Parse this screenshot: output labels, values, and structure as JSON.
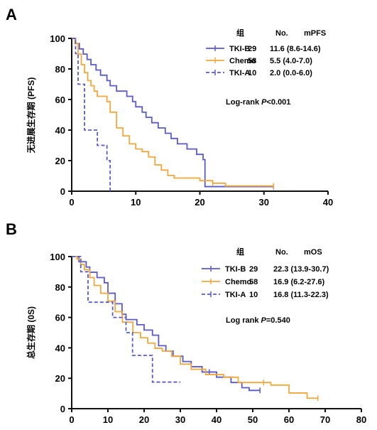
{
  "chart_data": [
    {
      "type": "line",
      "panel": "A",
      "xlabel": "",
      "ylabel": "无进展生存期 (PFS)",
      "xlim": [
        0,
        40
      ],
      "ylim": [
        0,
        100
      ],
      "xticks": [
        0,
        10,
        20,
        30,
        40
      ],
      "yticks": [
        0,
        20,
        40,
        60,
        80,
        100
      ],
      "grid": false,
      "legend": {
        "placement": "top-right",
        "headers": [
          "组",
          "No.",
          "mPFS"
        ],
        "entries": [
          {
            "name": "TKI-B",
            "n": "29",
            "median": "11.6 (8.6-14.6)"
          },
          {
            "name": "Chemo",
            "n": "58",
            "median": "5.5 (4.0-7.0)"
          },
          {
            "name": "TKI-A",
            "n": "10",
            "median": "2.0 (0.0-6.0)"
          }
        ]
      },
      "annotation": {
        "prefix": "Log-rank ",
        "italic": "P",
        "suffix": "<0.001"
      },
      "series": [
        {
          "name": "TKI-B",
          "color": "#5a5ac8",
          "dash": false,
          "x": [
            0,
            0.6,
            1.2,
            1.8,
            2.4,
            3.0,
            3.8,
            4.5,
            5.5,
            6.0,
            7.0,
            8.6,
            9.5,
            10.0,
            11.0,
            11.6,
            12.5,
            13.5,
            14.6,
            15.5,
            16.5,
            18.0,
            19.5,
            20.5,
            20.8,
            31.5
          ],
          "y": [
            100,
            96.6,
            93.1,
            89.7,
            86.2,
            82.8,
            79.3,
            75.9,
            72.4,
            69.0,
            65.5,
            62.1,
            58.6,
            55.2,
            51.7,
            48.3,
            44.8,
            41.4,
            37.9,
            34.5,
            31.0,
            27.6,
            24.1,
            20.7,
            3.0,
            3.0
          ],
          "censor_x": [
            31.5
          ]
        },
        {
          "name": "Chemo",
          "color": "#f0a83c",
          "dash": false,
          "x": [
            0,
            0.5,
            1.0,
            1.5,
            2.0,
            2.5,
            3.0,
            3.5,
            4.0,
            5.5,
            6.0,
            7.0,
            8.0,
            9.0,
            10.0,
            11.0,
            12.0,
            13.0,
            14.0,
            15.0,
            16.0,
            18.0,
            20.0,
            22.0,
            24.0,
            28.0,
            31.5
          ],
          "y": [
            100,
            96.6,
            89.7,
            82.8,
            77.6,
            72.4,
            69.0,
            65.5,
            62.1,
            58.6,
            51.7,
            41.4,
            36.2,
            31.0,
            27.6,
            25.9,
            22.4,
            17.2,
            13.8,
            10.3,
            8.6,
            8.6,
            6.9,
            5.2,
            3.4,
            3.4,
            3.4
          ],
          "censor_x": [
            22.0,
            31.5
          ]
        },
        {
          "name": "TKI-A",
          "color": "#5a5ac8",
          "dash": true,
          "x": [
            0,
            0.6,
            1.0,
            2.0,
            4.0,
            5.5,
            6.0
          ],
          "y": [
            100,
            90,
            70,
            40,
            30,
            20,
            0
          ],
          "censor_x": []
        }
      ]
    },
    {
      "type": "line",
      "panel": "B",
      "xlabel": "",
      "ylabel": "总生存期 (0S)",
      "xlim": [
        0,
        80
      ],
      "ylim": [
        0,
        100
      ],
      "xticks": [
        0,
        10,
        20,
        30,
        40,
        50,
        60,
        70,
        80
      ],
      "yticks": [
        0,
        20,
        40,
        60,
        80,
        100
      ],
      "grid": false,
      "legend": {
        "placement": "top-right",
        "headers": [
          "组",
          "No.",
          "mOS"
        ],
        "entries": [
          {
            "name": "TKI-B",
            "n": "29",
            "median": "22.3 (13.9-30.7)"
          },
          {
            "name": "Chemo",
            "n": "58",
            "median": "16.9 (6.2-27.6)"
          },
          {
            "name": "TKI-A",
            "n": "10",
            "median": "16.8 (11.3-22.3)"
          }
        ]
      },
      "annotation": {
        "prefix": "Log rank ",
        "italic": "P",
        "suffix": "=0.540"
      },
      "series": [
        {
          "name": "TKI-B",
          "color": "#5a5ac8",
          "dash": false,
          "x": [
            0,
            2.0,
            4.0,
            5.0,
            7.0,
            9.0,
            10.0,
            12.0,
            13.9,
            15.0,
            18.0,
            20.0,
            22.3,
            24.0,
            26.0,
            28.0,
            30.7,
            33.0,
            36.0,
            40.0,
            44.0,
            47.0,
            49.0,
            52.0
          ],
          "y": [
            100,
            96.6,
            93.1,
            89.7,
            86.2,
            82.8,
            75.9,
            69.0,
            62.1,
            58.6,
            55.2,
            51.7,
            48.3,
            41.4,
            37.9,
            34.5,
            31.0,
            27.6,
            24.1,
            20.7,
            17.2,
            13.8,
            12.0,
            12.0
          ],
          "censor_x": [
            38.0,
            52.0
          ]
        },
        {
          "name": "Chemo",
          "color": "#f0a83c",
          "dash": false,
          "x": [
            0,
            1.5,
            2.5,
            3.5,
            5.0,
            6.2,
            8.0,
            10.0,
            12.0,
            14.0,
            16.9,
            19.0,
            21.0,
            23.0,
            25.0,
            27.6,
            30.0,
            33.0,
            37.0,
            42.0,
            46.0,
            50.0,
            55.0,
            60.0,
            65.0,
            68.0
          ],
          "y": [
            100,
            98.3,
            94.8,
            91.4,
            86.2,
            81.0,
            75.9,
            70.7,
            63.8,
            56.9,
            50.0,
            46.6,
            43.1,
            39.7,
            37.9,
            34.5,
            29.3,
            25.9,
            22.4,
            20.7,
            17.2,
            17.2,
            15.5,
            10.3,
            6.9,
            6.9
          ],
          "censor_x": [
            53.0,
            68.0
          ]
        },
        {
          "name": "TKI-A",
          "color": "#5a5ac8",
          "dash": true,
          "x": [
            0,
            2.5,
            4.5,
            11.3,
            15.0,
            16.8,
            22.3,
            30.0
          ],
          "y": [
            100,
            90,
            70,
            60,
            50,
            35,
            17.5,
            17.5
          ],
          "censor_x": []
        }
      ]
    }
  ]
}
